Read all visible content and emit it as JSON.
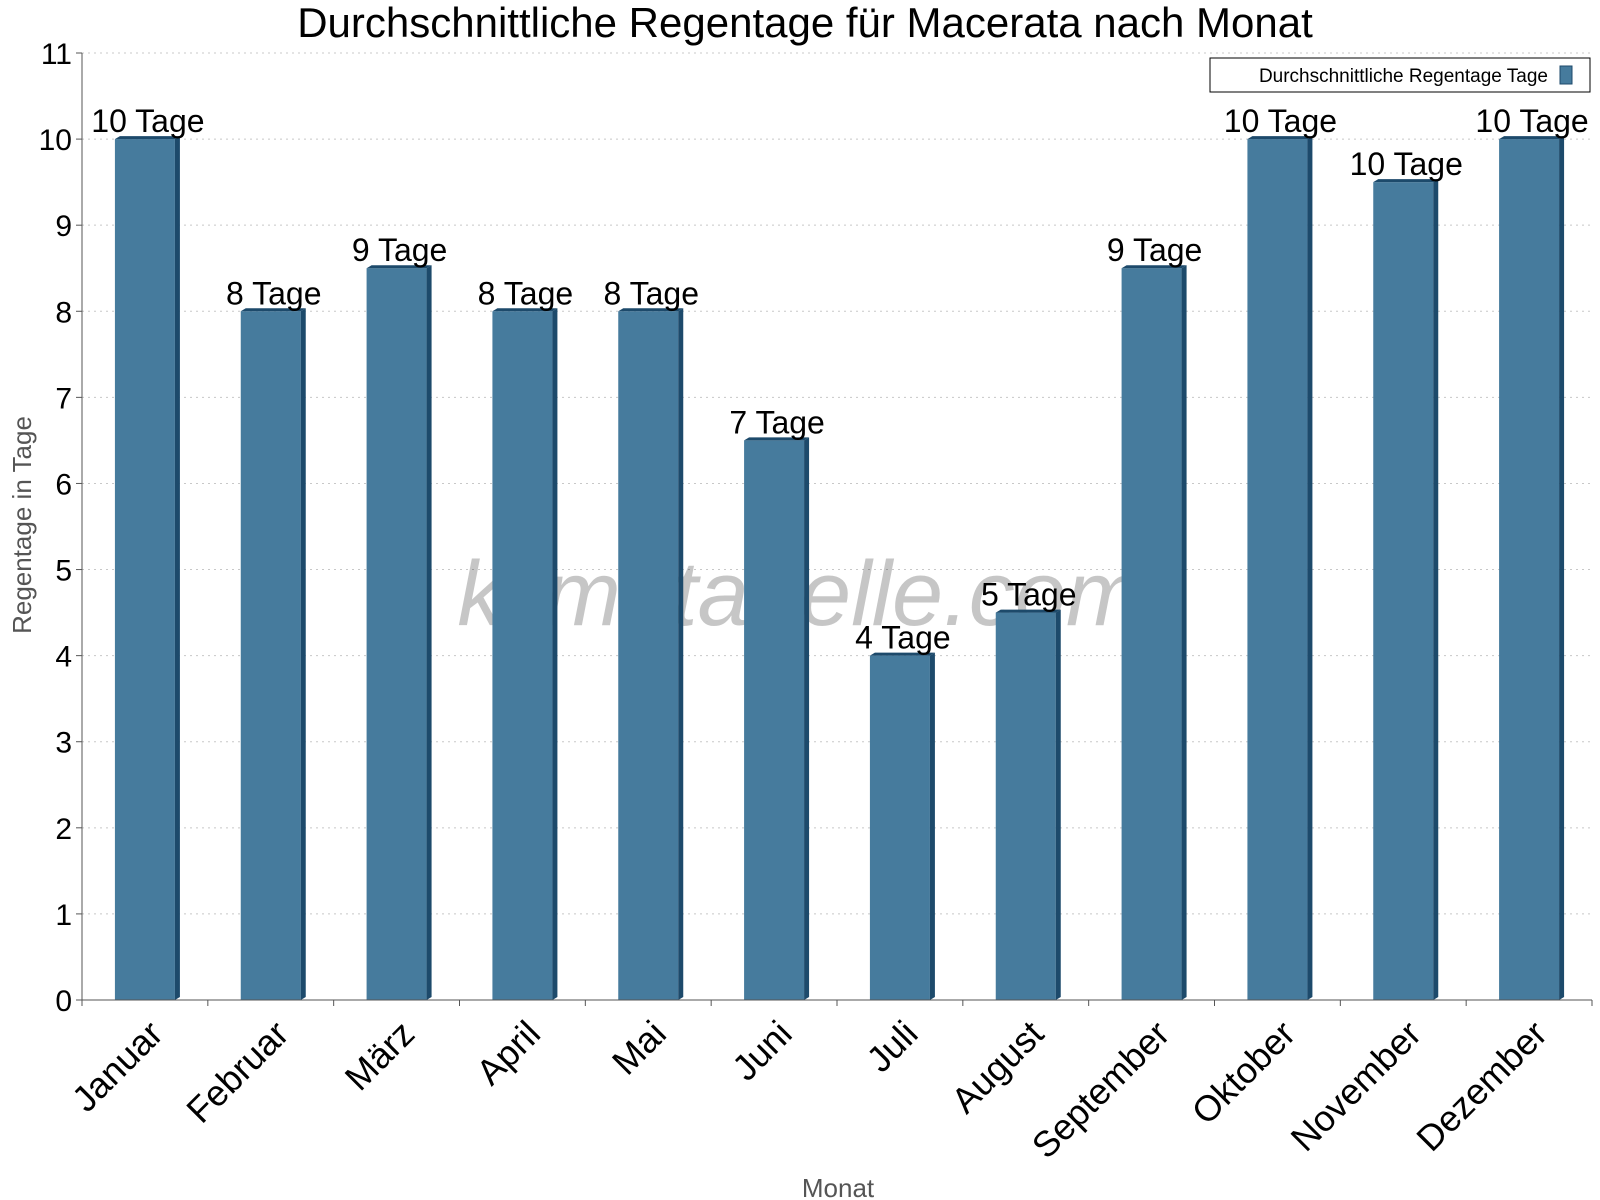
{
  "watermark": "klimatabelle.com",
  "colors": {
    "bar": "#467b9d",
    "bar_dark": "#1d4a6b",
    "grid": "#c8c8c8",
    "axis": "#555555"
  },
  "chart_data": {
    "type": "bar",
    "title": "Durchschnittliche Regentage für Macerata nach Monat",
    "xlabel": "Monat",
    "ylabel": "Regentage in Tage",
    "ylim": [
      0,
      11
    ],
    "yticks": [
      0,
      1,
      2,
      3,
      4,
      5,
      6,
      7,
      8,
      9,
      10,
      11
    ],
    "grid": true,
    "legend": {
      "position": "top-right",
      "entries": [
        "Durchschnittliche Regentage Tage"
      ]
    },
    "categories": [
      "Januar",
      "Februar",
      "März",
      "April",
      "Mai",
      "Juni",
      "Juli",
      "August",
      "September",
      "Oktober",
      "November",
      "Dezember"
    ],
    "series": [
      {
        "name": "Durchschnittliche Regentage Tage",
        "values": [
          10,
          8,
          8.5,
          8,
          8,
          6.5,
          4,
          4.5,
          8.5,
          10,
          9.5,
          10
        ],
        "labels": [
          "10 Tage",
          "8 Tage",
          "9 Tage",
          "8 Tage",
          "8 Tage",
          "7 Tage",
          "4 Tage",
          "5 Tage",
          "9 Tage",
          "10 Tage",
          "10 Tage",
          "10 Tage"
        ]
      }
    ]
  }
}
